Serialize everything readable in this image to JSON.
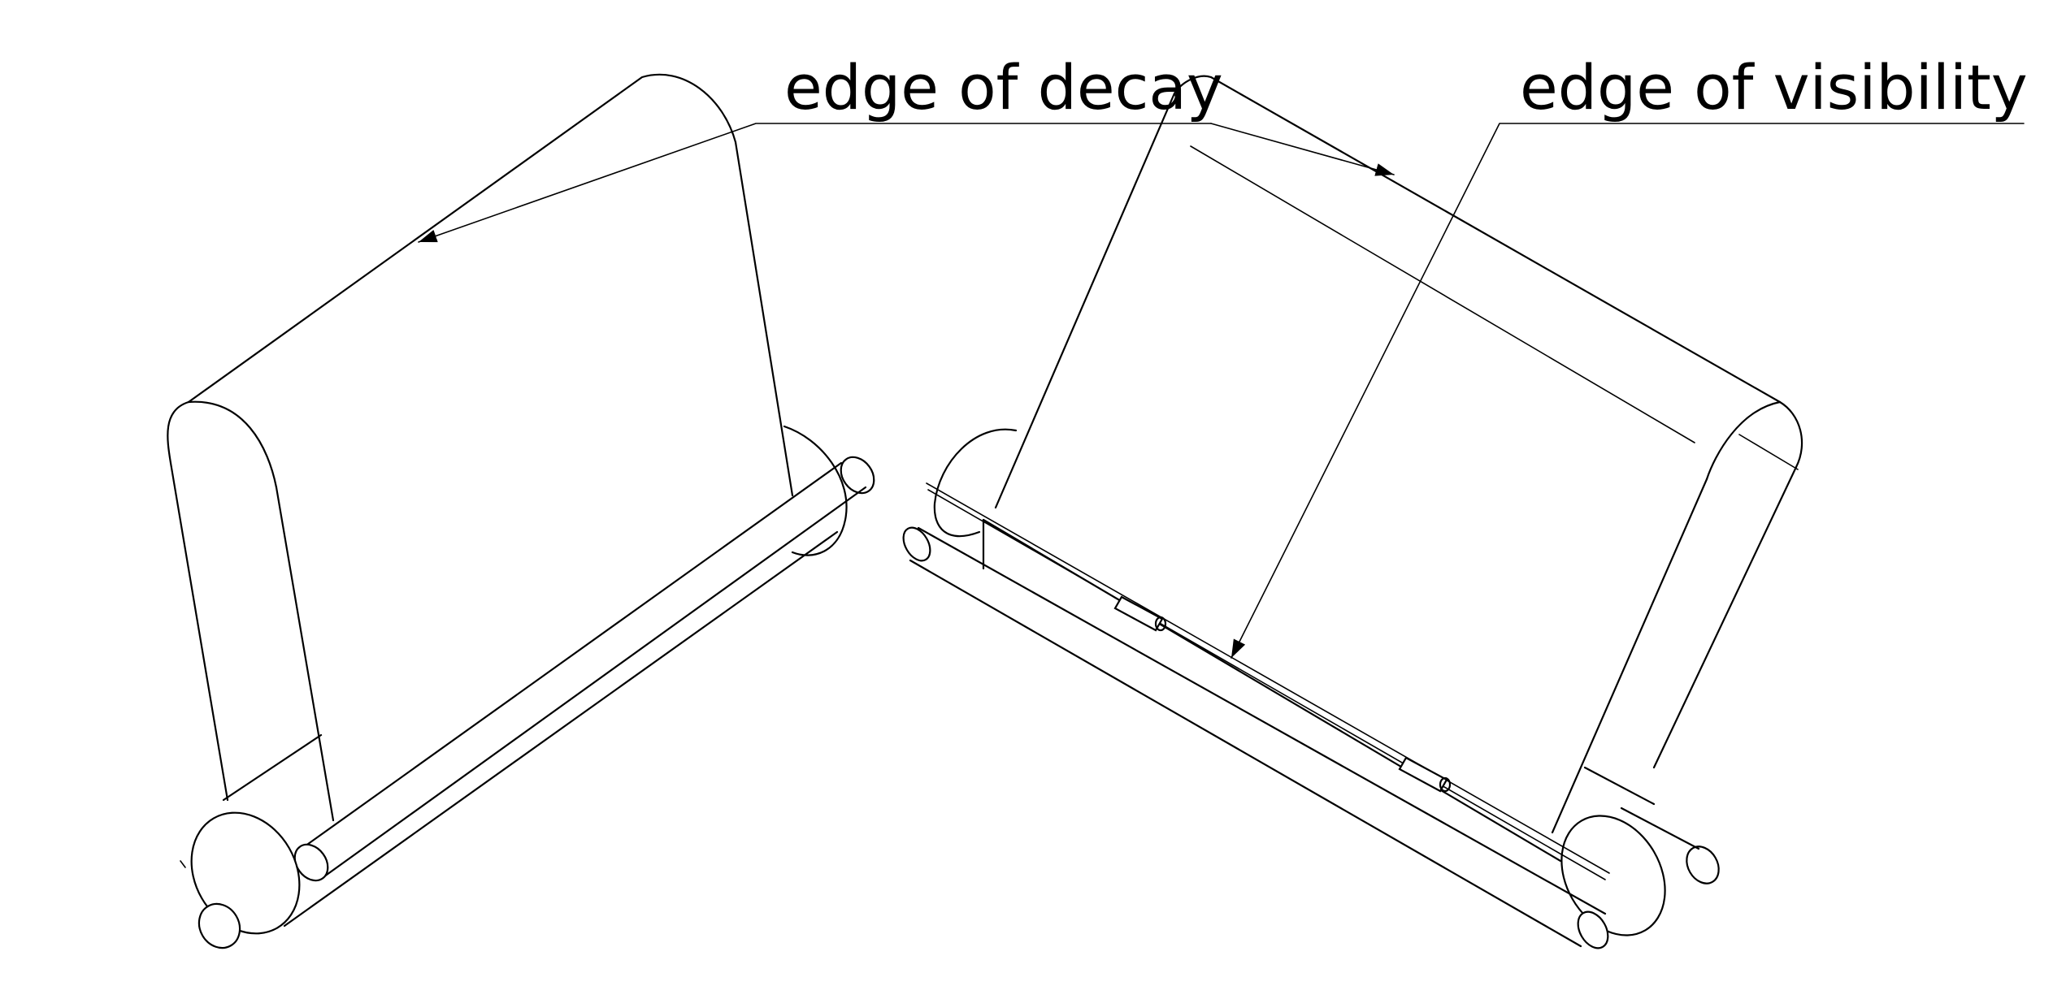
{
  "labels": {
    "decay": "edge of decay",
    "visibility": "edge of visibility"
  },
  "colors": {
    "line": "#000000",
    "background": "#ffffff"
  }
}
